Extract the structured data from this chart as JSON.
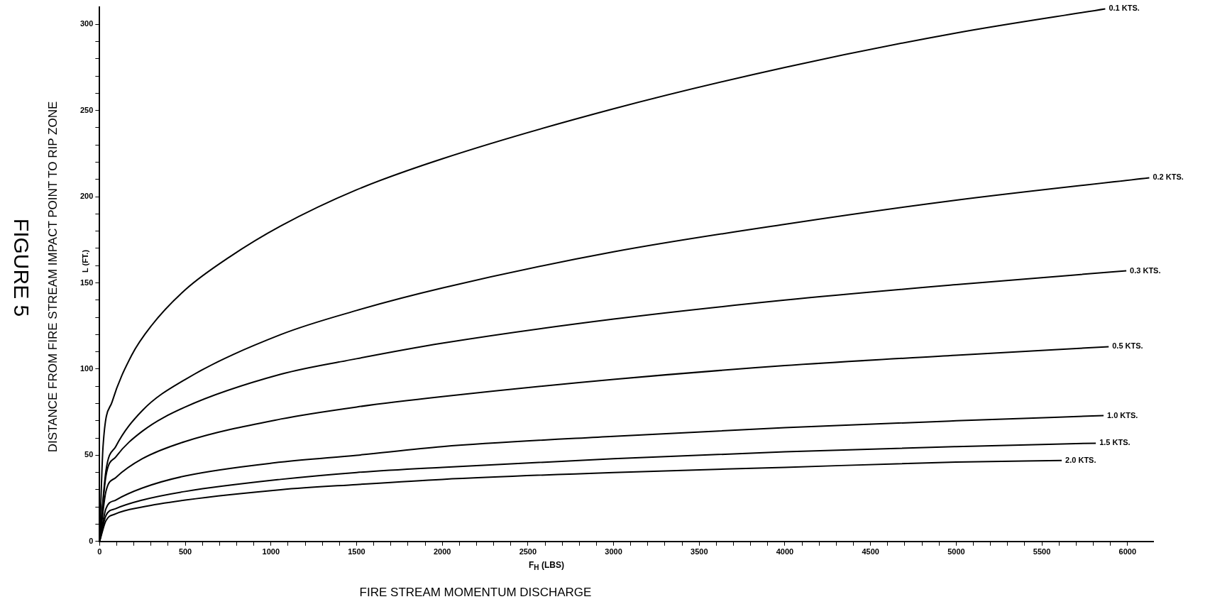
{
  "chart_data": {
    "type": "line",
    "title": "FIGURE 5",
    "ylabel": "DISTANCE FROM FIRE STREAM IMPACT POINT TO RIP ZONE",
    "xlabel": "FIRE STREAM MOMENTUM DISCHARGE",
    "annotations": [
      "L (FT.)",
      "F$_{H}$  (LBS)"
    ],
    "series": [
      {
        "name": "0.1 KTS.",
        "color": "#000000",
        "x": [
          0,
          20,
          73,
          187,
          301,
          500,
          758,
          1057,
          1500,
          2000,
          3000,
          4000,
          5000,
          5870
        ],
        "values": [
          0,
          55,
          81,
          108,
          125,
          146,
          165,
          183,
          204,
          222,
          251,
          275,
          295,
          309
        ]
      },
      {
        "name": "0.2 KTS.",
        "color": "#000000",
        "x": [
          0,
          37,
          94,
          250,
          500,
          1057,
          1500,
          2000,
          3000,
          4000,
          5000,
          6127
        ],
        "values": [
          0,
          41,
          55,
          76,
          94,
          120,
          134,
          147,
          168,
          184,
          198,
          211
        ]
      },
      {
        "name": "0.3 KTS.",
        "color": "#000000",
        "x": [
          0,
          37,
          94,
          250,
          500,
          1057,
          1500,
          2000,
          3000,
          4000,
          5000,
          5993
        ],
        "values": [
          0,
          38,
          49,
          64,
          78,
          97,
          106,
          115,
          129,
          140,
          149,
          157
        ]
      },
      {
        "name": "0.5 KTS.",
        "color": "#000000",
        "x": [
          0,
          37,
          94,
          250,
          500,
          1057,
          1500,
          2000,
          3000,
          4000,
          5000,
          5890
        ],
        "values": [
          0,
          29,
          37,
          48,
          58,
          71,
          78,
          84,
          94,
          102,
          108,
          113
        ]
      },
      {
        "name": "1.0 KTS.",
        "color": "#000000",
        "x": [
          0,
          37,
          94,
          250,
          500,
          1057,
          1500,
          2000,
          3000,
          4000,
          5000,
          5860
        ],
        "values": [
          0,
          19,
          24,
          31,
          38,
          46,
          50,
          55,
          61,
          66,
          70,
          73
        ]
      },
      {
        "name": "1.5 KTS.",
        "color": "#000000",
        "x": [
          0,
          37,
          94,
          250,
          500,
          1057,
          1500,
          2000,
          3000,
          4000,
          5000,
          5815
        ],
        "values": [
          0,
          15,
          19,
          24,
          29,
          36,
          40,
          43,
          48,
          52,
          55,
          57
        ]
      },
      {
        "name": "2.0 KTS.",
        "color": "#000000",
        "x": [
          0,
          37,
          94,
          250,
          500,
          1057,
          1500,
          2000,
          3000,
          4000,
          5000,
          5616
        ],
        "values": [
          0,
          12,
          16,
          20,
          24,
          30,
          33,
          36,
          40,
          43,
          46,
          47
        ]
      }
    ],
    "xlim": [
      0,
      6150
    ],
    "ylim": [
      0,
      310
    ],
    "xticks": [
      0,
      {
        "value": 100,
        "label": null
      },
      {
        "value": 200,
        "label": null
      },
      {
        "value": 300,
        "label": null
      },
      {
        "value": 400,
        "label": null
      },
      500,
      {
        "value": 600,
        "label": null
      },
      {
        "value": 700,
        "label": null
      },
      {
        "value": 800,
        "label": null
      },
      {
        "value": 900,
        "label": null
      },
      1000,
      {
        "value": 1100,
        "label": null
      },
      {
        "value": 1200,
        "label": null
      },
      {
        "value": 1300,
        "label": null
      },
      {
        "value": 1400,
        "label": null
      },
      1500,
      {
        "value": 1600,
        "label": null
      },
      {
        "value": 1700,
        "label": null
      },
      {
        "value": 1800,
        "label": null
      },
      {
        "value": 1900,
        "label": null
      },
      2000,
      {
        "value": 2100,
        "label": null
      },
      {
        "value": 2200,
        "label": null
      },
      {
        "value": 2300,
        "label": null
      },
      {
        "value": 2400,
        "label": null
      },
      2500,
      {
        "value": 2600,
        "label": null
      },
      {
        "value": 2700,
        "label": null
      },
      {
        "value": 2800,
        "label": null
      },
      {
        "value": 2900,
        "label": null
      },
      3000,
      {
        "value": 3100,
        "label": null
      },
      {
        "value": 3200,
        "label": null
      },
      {
        "value": 3300,
        "label": null
      },
      {
        "value": 3400,
        "label": null
      },
      3500,
      {
        "value": 3600,
        "label": null
      },
      {
        "value": 3700,
        "label": null
      },
      {
        "value": 3800,
        "label": null
      },
      {
        "value": 3900,
        "label": null
      },
      4000,
      {
        "value": 4100,
        "label": null
      },
      {
        "value": 4200,
        "label": null
      },
      {
        "value": 4300,
        "label": null
      },
      {
        "value": 4400,
        "label": null
      },
      4500,
      {
        "value": 4600,
        "label": null
      },
      {
        "value": 4700,
        "label": null
      },
      {
        "value": 4800,
        "label": null
      },
      {
        "value": 4900,
        "label": null
      },
      5000,
      {
        "value": 5100,
        "label": null
      },
      {
        "value": 5200,
        "label": null
      },
      {
        "value": 5300,
        "label": null
      },
      {
        "value": 5400,
        "label": null
      },
      5500,
      {
        "value": 5600,
        "label": null
      },
      {
        "value": 5700,
        "label": null
      },
      {
        "value": 5800,
        "label": null
      },
      {
        "value": 5900,
        "label": null
      },
      6000
    ],
    "yticks": [
      0,
      {
        "value": 10,
        "label": null
      },
      {
        "value": 20,
        "label": null
      },
      {
        "value": 30,
        "label": null
      },
      {
        "value": 40,
        "label": null
      },
      50,
      {
        "value": 60,
        "label": null
      },
      {
        "value": 70,
        "label": null
      },
      {
        "value": 80,
        "label": null
      },
      {
        "value": 90,
        "label": null
      },
      100,
      {
        "value": 110,
        "label": null
      },
      {
        "value": 120,
        "label": null
      },
      {
        "value": 130,
        "label": null
      },
      {
        "value": 140,
        "label": null
      },
      150,
      {
        "value": 160,
        "label": null
      },
      {
        "value": 170,
        "label": null
      },
      {
        "value": 180,
        "label": null
      },
      {
        "value": 190,
        "label": null
      },
      200,
      {
        "value": 210,
        "label": null
      },
      {
        "value": 220,
        "label": null
      },
      {
        "value": 230,
        "label": null
      },
      {
        "value": 240,
        "label": null
      },
      250,
      {
        "value": 260,
        "label": null
      },
      {
        "value": 270,
        "label": null
      },
      {
        "value": 280,
        "label": null
      },
      {
        "value": 290,
        "label": null
      },
      300
    ],
    "marker": "none",
    "line_style": "solid",
    "grid": false,
    "legend": false
  }
}
